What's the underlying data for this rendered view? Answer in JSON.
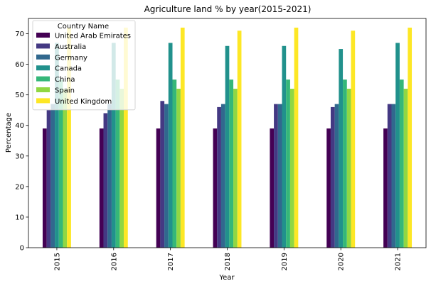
{
  "chart_data": {
    "type": "bar",
    "title": "Agriculture land % by year(2015-2021)",
    "xlabel": "Year",
    "ylabel": "Percentage",
    "categories": [
      "2015",
      "2016",
      "2017",
      "2018",
      "2019",
      "2020",
      "2021"
    ],
    "ylim": [
      0,
      75
    ],
    "yticks": [
      0,
      10,
      20,
      30,
      40,
      50,
      60,
      70
    ],
    "grid": false,
    "legend": {
      "title": "Country Name",
      "placement": "top-left"
    },
    "series": [
      {
        "name": "United Arab Emirates",
        "color": "#440154",
        "values": [
          39,
          39,
          39,
          39,
          39,
          39,
          39
        ]
      },
      {
        "name": "Australia",
        "color": "#443983",
        "values": [
          45,
          44,
          48,
          46,
          47,
          46,
          47
        ]
      },
      {
        "name": "Germany",
        "color": "#31688e",
        "values": [
          47,
          47,
          47,
          47,
          47,
          47,
          47
        ]
      },
      {
        "name": "Canada",
        "color": "#21918c",
        "values": [
          67,
          67,
          67,
          66,
          66,
          65,
          67
        ]
      },
      {
        "name": "China",
        "color": "#35b779",
        "values": [
          55,
          55,
          55,
          55,
          55,
          55,
          55
        ]
      },
      {
        "name": "Spain",
        "color": "#90d743",
        "values": [
          52,
          52,
          52,
          52,
          52,
          52,
          52
        ]
      },
      {
        "name": "United Kingdom",
        "color": "#fde725",
        "values": [
          72,
          72,
          72,
          71,
          72,
          71,
          72
        ]
      }
    ]
  }
}
